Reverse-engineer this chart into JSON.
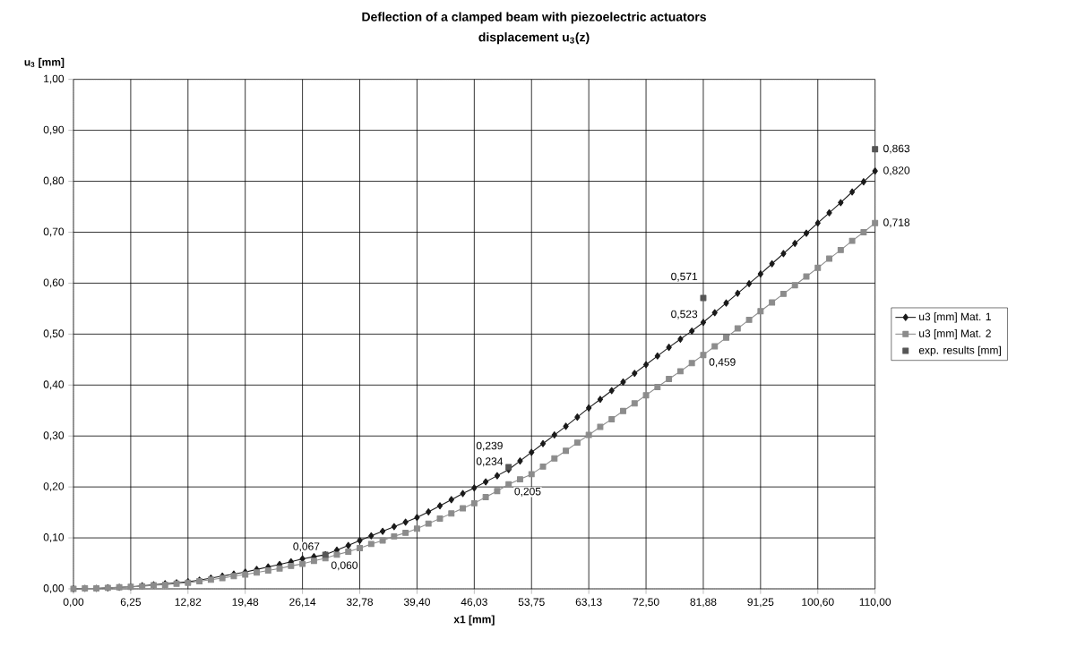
{
  "chart_data": {
    "type": "line",
    "title": "Deflection of a clamped beam with piezoelectric actuators",
    "subtitle": "displacement u$_{3}$(z)",
    "xlabel": "x1 [mm]",
    "ylabel": "u$_{3}$ [mm]",
    "categories": [
      "0,00",
      null,
      null,
      null,
      null,
      "6,25",
      null,
      null,
      null,
      null,
      "12,82",
      null,
      null,
      null,
      null,
      "19,48",
      null,
      null,
      null,
      null,
      "26,14",
      null,
      null,
      null,
      null,
      "32,78",
      null,
      null,
      null,
      null,
      "39,40",
      null,
      null,
      null,
      null,
      "46,03",
      null,
      null,
      null,
      null,
      "53,75",
      null,
      null,
      null,
      null,
      "63,13",
      null,
      null,
      null,
      null,
      "72,50",
      null,
      null,
      null,
      null,
      "81,88",
      null,
      null,
      null,
      null,
      "91,25",
      null,
      null,
      null,
      null,
      "100,60",
      null,
      null,
      null,
      null,
      "110,00"
    ],
    "series": [
      {
        "name": "u3 [mm] Mat. 1",
        "color": "#1a1a1a",
        "marker": "diamond",
        "values": [
          0,
          0.001,
          0.001,
          0.002,
          0.003,
          0.004,
          0.006,
          0.008,
          0.01,
          0.012,
          0.014,
          0.017,
          0.021,
          0.025,
          0.029,
          0.033,
          0.038,
          0.043,
          0.048,
          0.053,
          0.059,
          0.063,
          0.067,
          0.076,
          0.085,
          0.095,
          0.104,
          0.113,
          0.122,
          0.131,
          0.14,
          0.151,
          0.163,
          0.175,
          0.187,
          0.198,
          0.21,
          0.222,
          0.234,
          0.251,
          0.268,
          0.285,
          0.302,
          0.319,
          0.337,
          0.355,
          0.372,
          0.389,
          0.406,
          0.423,
          0.44,
          0.457,
          0.474,
          0.49,
          0.506,
          0.523,
          0.542,
          0.561,
          0.58,
          0.599,
          0.618,
          0.638,
          0.658,
          0.678,
          0.698,
          0.718,
          0.738,
          0.758,
          0.779,
          0.799,
          0.82
        ],
        "value_labels": [
          null,
          null,
          null,
          null,
          null,
          null,
          null,
          null,
          null,
          null,
          null,
          null,
          null,
          null,
          null,
          null,
          null,
          null,
          null,
          null,
          null,
          null,
          "0,067",
          null,
          null,
          null,
          null,
          null,
          null,
          null,
          null,
          null,
          null,
          null,
          null,
          null,
          null,
          null,
          "0,234",
          null,
          null,
          null,
          null,
          null,
          null,
          null,
          null,
          null,
          null,
          null,
          null,
          null,
          null,
          null,
          null,
          "0,523",
          null,
          null,
          null,
          null,
          null,
          null,
          null,
          null,
          null,
          null,
          null,
          null,
          null,
          null,
          "0,820"
        ]
      },
      {
        "name": "u3 [mm] Mat. 2",
        "color": "#8c8c8c",
        "marker": "square",
        "values": [
          0,
          0.001,
          0.001,
          0.002,
          0.003,
          0.004,
          0.005,
          0.007,
          0.008,
          0.01,
          0.012,
          0.015,
          0.018,
          0.021,
          0.025,
          0.028,
          0.032,
          0.036,
          0.04,
          0.045,
          0.049,
          0.055,
          0.06,
          0.067,
          0.073,
          0.08,
          0.088,
          0.095,
          0.103,
          0.11,
          0.118,
          0.128,
          0.138,
          0.148,
          0.158,
          0.168,
          0.18,
          0.192,
          0.205,
          0.215,
          0.225,
          0.24,
          0.256,
          0.271,
          0.287,
          0.302,
          0.318,
          0.333,
          0.349,
          0.364,
          0.38,
          0.396,
          0.412,
          0.427,
          0.443,
          0.459,
          0.476,
          0.493,
          0.511,
          0.528,
          0.545,
          0.562,
          0.579,
          0.596,
          0.613,
          0.63,
          0.648,
          0.665,
          0.683,
          0.7,
          0.718
        ],
        "value_labels": [
          null,
          null,
          null,
          null,
          null,
          null,
          null,
          null,
          null,
          null,
          null,
          null,
          null,
          null,
          null,
          null,
          null,
          null,
          null,
          null,
          null,
          null,
          "0,060",
          null,
          null,
          null,
          null,
          null,
          null,
          null,
          null,
          null,
          null,
          null,
          null,
          null,
          null,
          null,
          "0,205",
          null,
          null,
          null,
          null,
          null,
          null,
          null,
          null,
          null,
          null,
          null,
          null,
          null,
          null,
          null,
          null,
          "0,459",
          null,
          null,
          null,
          null,
          null,
          null,
          null,
          null,
          null,
          null,
          null,
          null,
          null,
          null,
          "0,718"
        ]
      },
      {
        "name": "exp. results [mm]",
        "type": "scatter",
        "color": "#555555",
        "marker": "square",
        "values": [
          null,
          null,
          null,
          null,
          null,
          null,
          null,
          null,
          null,
          null,
          null,
          null,
          null,
          null,
          null,
          null,
          null,
          null,
          null,
          null,
          null,
          null,
          0.067,
          null,
          null,
          null,
          null,
          null,
          null,
          null,
          null,
          null,
          null,
          null,
          null,
          null,
          null,
          null,
          0.239,
          null,
          null,
          null,
          null,
          null,
          null,
          null,
          null,
          null,
          null,
          null,
          null,
          null,
          null,
          null,
          null,
          0.571,
          null,
          null,
          null,
          null,
          null,
          null,
          null,
          null,
          null,
          null,
          null,
          null,
          null,
          null,
          0.863
        ],
        "value_labels": [
          null,
          null,
          null,
          null,
          null,
          null,
          null,
          null,
          null,
          null,
          null,
          null,
          null,
          null,
          null,
          null,
          null,
          null,
          null,
          null,
          null,
          null,
          null,
          null,
          null,
          null,
          null,
          null,
          null,
          null,
          null,
          null,
          null,
          null,
          null,
          null,
          null,
          null,
          "0,239",
          null,
          null,
          null,
          null,
          null,
          null,
          null,
          null,
          null,
          null,
          null,
          null,
          null,
          null,
          null,
          null,
          "0,571",
          null,
          null,
          null,
          null,
          null,
          null,
          null,
          null,
          null,
          null,
          null,
          null,
          null,
          null,
          "0,863"
        ]
      }
    ],
    "ylim": [
      0,
      1
    ],
    "yticks": [
      {
        "value": 0,
        "label": "0,00"
      },
      {
        "value": 0.1,
        "label": "0,10"
      },
      {
        "value": 0.2,
        "label": "0,20"
      },
      {
        "value": 0.3,
        "label": "0,30"
      },
      {
        "value": 0.4,
        "label": "0,40"
      },
      {
        "value": 0.5,
        "label": "0,50"
      },
      {
        "value": 0.6,
        "label": "0,60"
      },
      {
        "value": 0.7,
        "label": "0,70"
      },
      {
        "value": 0.8,
        "label": "0,80"
      },
      {
        "value": 0.9,
        "label": "0,90"
      },
      {
        "value": 1,
        "label": "1,00"
      }
    ],
    "grid": true,
    "legend": "right"
  }
}
